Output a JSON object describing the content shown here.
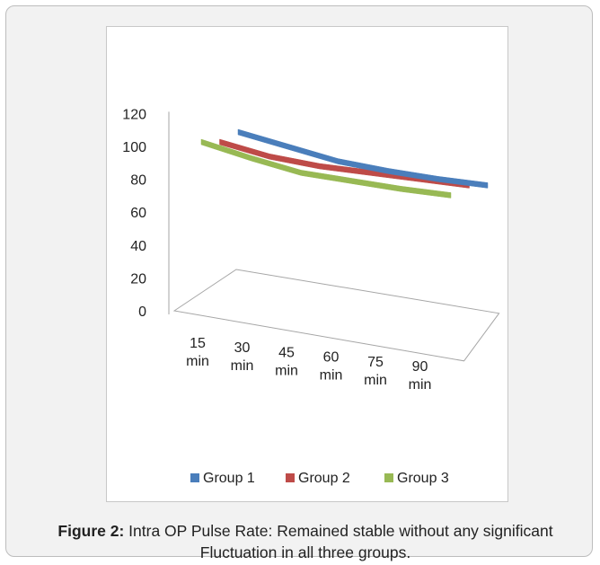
{
  "caption": {
    "label": "Figure 2:",
    "text": "Intra OP Pulse Rate: Remained stable without any significant Fluctuation in all three groups."
  },
  "chart_data": {
    "type": "line",
    "title": "",
    "xlabel": "",
    "ylabel": "",
    "ylim": [
      0,
      120
    ],
    "yticks": [
      "0",
      "20",
      "40",
      "60",
      "80",
      "100",
      "120"
    ],
    "categories": [
      [
        "15",
        "min"
      ],
      [
        "30",
        "min"
      ],
      [
        "45",
        "min"
      ],
      [
        "60",
        "min"
      ],
      [
        "75",
        "min"
      ],
      [
        "90",
        "min"
      ]
    ],
    "series": [
      {
        "name": "Group 1",
        "color": "#4a7ebb",
        "values": [
          94,
          88,
          82,
          79,
          77,
          76
        ]
      },
      {
        "name": "Group 2",
        "color": "#be4b48",
        "values": [
          94,
          88,
          85,
          84,
          83,
          82
        ]
      },
      {
        "name": "Group 3",
        "color": "#98b954",
        "values": [
          100,
          93,
          87,
          85,
          83,
          82
        ]
      }
    ],
    "legend_position": "bottom",
    "grid": false,
    "projection": "3d"
  }
}
